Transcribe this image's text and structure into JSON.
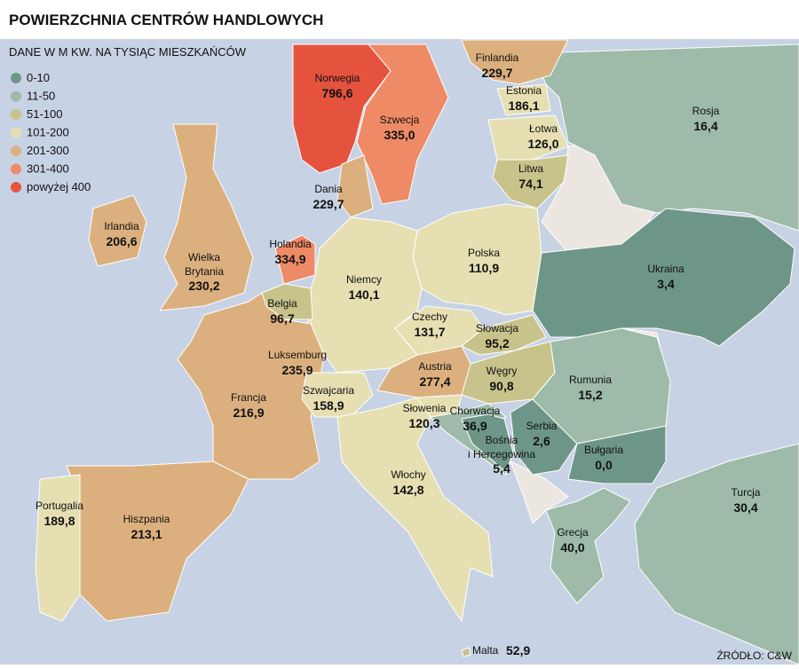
{
  "title": "POWIERZCHNIA CENTRÓW HANDLOWYCH",
  "subtitle": "DANE W M KW. NA TYSIĄC MIESZKAŃCÓW",
  "legend": [
    {
      "label": "0-10",
      "color": "#6e9688"
    },
    {
      "label": "11-50",
      "color": "#9dbba8"
    },
    {
      "label": "51-100",
      "color": "#c8c38a"
    },
    {
      "label": "101-200",
      "color": "#e6dfb2"
    },
    {
      "label": "201-300",
      "color": "#dcb07e"
    },
    {
      "label": "301-400",
      "color": "#ee8a66"
    },
    {
      "label": "powyżej 400",
      "color": "#e5533f"
    }
  ],
  "countries": [
    {
      "name": "Rosja",
      "value": "16,4",
      "color": "#9dbba8"
    },
    {
      "name": "Finlandia",
      "value": "229,7",
      "color": "#dcb07e"
    },
    {
      "name": "Norwegia",
      "value": "796,6",
      "color": "#e5533f"
    },
    {
      "name": "Szwecja",
      "value": "335,0",
      "color": "#ee8a66"
    },
    {
      "name": "Estonia",
      "value": "186,1",
      "color": "#e6dfb2"
    },
    {
      "name": "Łotwa",
      "value": "126,0",
      "color": "#e6dfb2"
    },
    {
      "name": "Litwa",
      "value": "74,1",
      "color": "#c8c38a"
    },
    {
      "name": "Ukraina",
      "value": "3,4",
      "color": "#6e9688"
    },
    {
      "name": "Polska",
      "value": "110,9",
      "color": "#e6dfb2"
    },
    {
      "name": "Niemcy",
      "value": "140,1",
      "color": "#e6dfb2"
    },
    {
      "name": "Dania",
      "value": "229,7",
      "color": "#dcb07e"
    },
    {
      "name": "Holandia",
      "value": "334,9",
      "color": "#ee8a66"
    },
    {
      "name": "Belgia",
      "value": "96,7",
      "color": "#c8c38a"
    },
    {
      "name": "Luksemburg",
      "value": "235,9",
      "color": "#dcb07e"
    },
    {
      "name": "Francja",
      "value": "216,9",
      "color": "#dcb07e"
    },
    {
      "name": [
        "Wielka",
        "Brytania"
      ],
      "value": "230,2",
      "color": "#dcb07e"
    },
    {
      "name": "Irlandia",
      "value": "206,6",
      "color": "#dcb07e"
    },
    {
      "name": "Hiszpania",
      "value": "213,1",
      "color": "#dcb07e"
    },
    {
      "name": "Portugalia",
      "value": "189,8",
      "color": "#e6dfb2"
    },
    {
      "name": "Szwajcaria",
      "value": "158,9",
      "color": "#e6dfb2"
    },
    {
      "name": "Włochy",
      "value": "142,8",
      "color": "#e6dfb2"
    },
    {
      "name": "Austria",
      "value": "277,4",
      "color": "#dcb07e"
    },
    {
      "name": "Czechy",
      "value": "131,7",
      "color": "#e6dfb2"
    },
    {
      "name": "Słowacja",
      "value": "95,2",
      "color": "#c8c38a"
    },
    {
      "name": "Węgry",
      "value": "90,8",
      "color": "#c8c38a"
    },
    {
      "name": "Słowenia",
      "value": "120,3",
      "color": "#e6dfb2"
    },
    {
      "name": "Chorwacja",
      "value": "36,9",
      "color": "#9dbba8"
    },
    {
      "name": [
        "Bośnia",
        "i Hercegowina"
      ],
      "value": "5,4",
      "color": "#6e9688"
    },
    {
      "name": "Serbia",
      "value": "2,6",
      "color": "#6e9688"
    },
    {
      "name": "Rumunia",
      "value": "15,2",
      "color": "#9dbba8"
    },
    {
      "name": "Bułgaria",
      "value": "0,0",
      "color": "#6e9688"
    },
    {
      "name": "Grecja",
      "value": "40,0",
      "color": "#9dbba8"
    },
    {
      "name": "Turcja",
      "value": "30,4",
      "color": "#9dbba8"
    },
    {
      "name": "Malta",
      "value": "52,9",
      "color": "#c8c38a"
    }
  ],
  "source": "ŹRÓDŁO: C&W"
}
